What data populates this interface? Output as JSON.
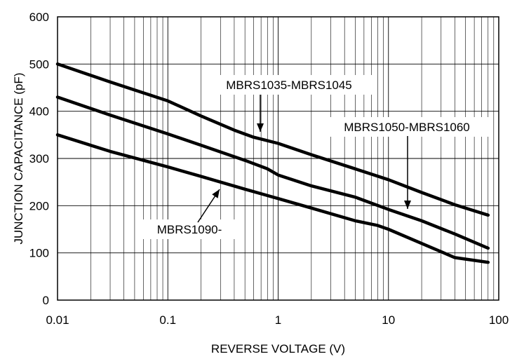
{
  "chart_data": {
    "type": "line",
    "xscale": "log",
    "xlim": [
      0.01,
      100
    ],
    "ylim": [
      0,
      600
    ],
    "grid": true,
    "xlabel": "REVERSE VOLTAGE (V)",
    "ylabel": "JUNCTION CAPACITANCE (pF)",
    "x_ticks": [
      "0.01",
      "0.1",
      "1",
      "10",
      "100"
    ],
    "y_ticks": [
      "0",
      "100",
      "200",
      "300",
      "400",
      "500",
      "600"
    ],
    "series": [
      {
        "name": "MBRS1035-MBRS1045",
        "x": [
          0.01,
          0.03,
          0.1,
          0.2,
          0.4,
          0.6,
          1,
          2,
          5,
          10,
          20,
          40,
          80
        ],
        "y": [
          500,
          462,
          422,
          390,
          360,
          345,
          332,
          308,
          278,
          255,
          228,
          202,
          180
        ]
      },
      {
        "name": "MBRS1050-MBRS1060",
        "x": [
          0.01,
          0.03,
          0.1,
          0.2,
          0.5,
          0.8,
          1,
          2,
          5,
          10,
          20,
          40,
          80
        ],
        "y": [
          430,
          392,
          352,
          328,
          296,
          278,
          265,
          242,
          218,
          192,
          168,
          140,
          110
        ]
      },
      {
        "name": "MBRS1090-",
        "x": [
          0.01,
          0.03,
          0.1,
          0.2,
          0.5,
          1,
          2,
          5,
          8,
          10,
          20,
          40,
          80
        ],
        "y": [
          350,
          315,
          282,
          262,
          235,
          215,
          195,
          168,
          158,
          150,
          120,
          90,
          80
        ]
      }
    ],
    "annotations": [
      {
        "text": "MBRS1035-MBRS1045",
        "series": 0,
        "x": 0.6,
        "y": 345
      },
      {
        "text": "MBRS1050-MBRS1060",
        "series": 1,
        "x": 13,
        "y": 190
      },
      {
        "text": "MBRS1090-",
        "series": 2,
        "x": 0.25,
        "y": 248
      }
    ]
  }
}
